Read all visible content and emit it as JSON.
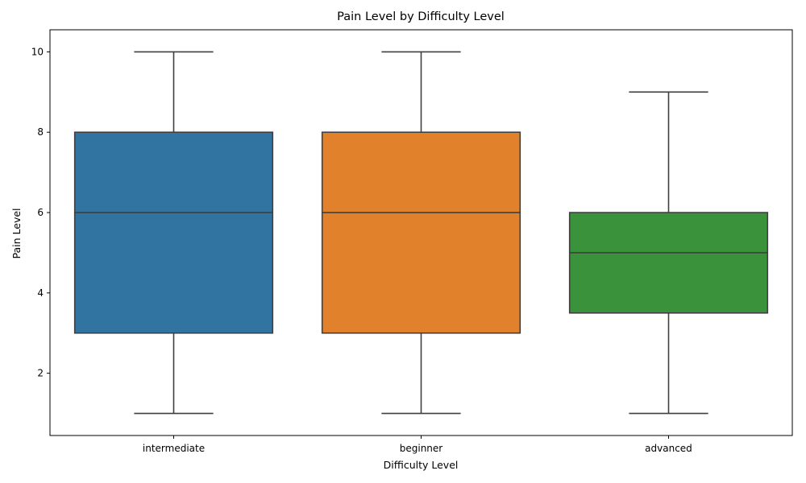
{
  "chart_data": {
    "type": "box",
    "title": "Pain Level by Difficulty Level",
    "xlabel": "Difficulty Level",
    "ylabel": "Pain Level",
    "ylim": [
      0.45,
      10.55
    ],
    "yticks": [
      2,
      4,
      6,
      8,
      10
    ],
    "categories": [
      "intermediate",
      "beginner",
      "advanced"
    ],
    "boxes": [
      {
        "category": "intermediate",
        "whisker_low": 1,
        "q1": 3,
        "median": 6,
        "q3": 8,
        "whisker_high": 10,
        "color": "#3274a1"
      },
      {
        "category": "beginner",
        "whisker_low": 1,
        "q1": 3,
        "median": 6,
        "q3": 8,
        "whisker_high": 10,
        "color": "#e1812c"
      },
      {
        "category": "advanced",
        "whisker_low": 1,
        "q1": 3.5,
        "median": 5,
        "q3": 6,
        "whisker_high": 9,
        "color": "#3a923a"
      }
    ],
    "grid": false,
    "line_color": "#3f3f3f"
  }
}
